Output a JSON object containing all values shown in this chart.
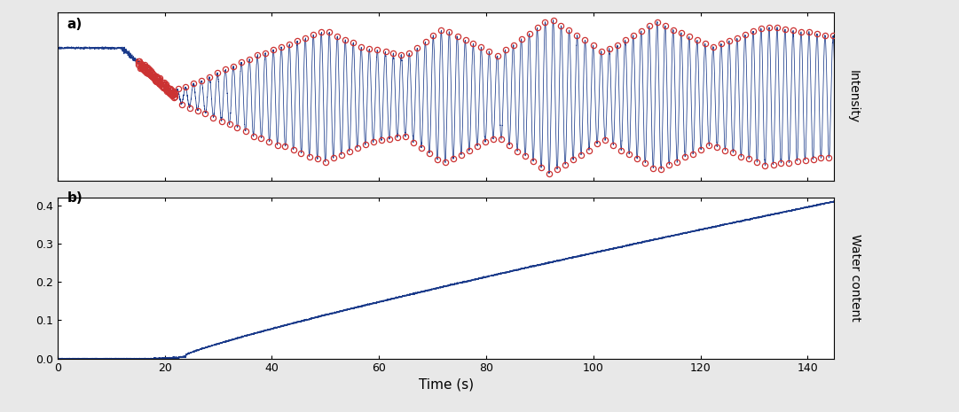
{
  "title_a": "a)",
  "title_b": "b)",
  "xlabel": "Time (s)",
  "ylabel_a": "Intensity",
  "ylabel_b": "Water content",
  "xlim": [
    0,
    145
  ],
  "ylim_b": [
    0,
    0.42
  ],
  "yticks_b": [
    0,
    0.1,
    0.2,
    0.3,
    0.4
  ],
  "xticks": [
    0,
    20,
    40,
    60,
    80,
    100,
    120,
    140
  ],
  "line_color": "#1a3a8a",
  "marker_color": "#cc3333",
  "bg_color": "#ffffff",
  "fig_bg_color": "#e8e8e8"
}
